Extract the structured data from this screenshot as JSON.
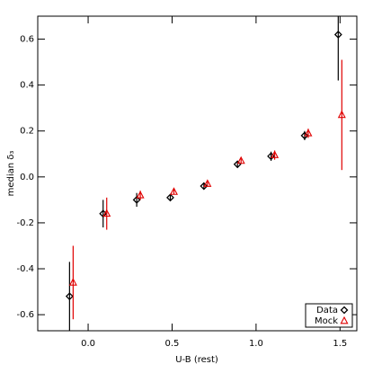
{
  "chart_data": {
    "type": "scatter",
    "xlabel": "U-B (rest)",
    "ylabel": "median δ₃",
    "x": [
      -0.1,
      0.1,
      0.3,
      0.5,
      0.7,
      0.9,
      1.1,
      1.3,
      1.5
    ],
    "series": [
      {
        "name": "Data",
        "color": "#000000",
        "marker": "diamond",
        "values": [
          -0.52,
          -0.16,
          -0.1,
          -0.09,
          -0.04,
          0.055,
          0.09,
          0.18,
          0.62
        ],
        "errors": [
          0.15,
          0.06,
          0.03,
          0.01,
          0.01,
          0.015,
          0.02,
          0.02,
          0.2
        ]
      },
      {
        "name": "Mock",
        "color": "#e00000",
        "marker": "triangle",
        "values": [
          -0.46,
          -0.16,
          -0.08,
          -0.065,
          -0.03,
          0.07,
          0.095,
          0.19,
          0.27
        ],
        "errors": [
          0.16,
          0.07,
          0.02,
          0.01,
          0.01,
          0.01,
          0.02,
          0.02,
          0.24
        ]
      }
    ],
    "xlim": [
      -0.3,
      1.6
    ],
    "ylim": [
      -0.67,
      0.7
    ],
    "xticks": [
      {
        "value": 0,
        "label": "0.0"
      },
      0.5,
      {
        "value": 1,
        "label": "1.0"
      },
      1.5
    ],
    "yticks": [
      -0.6,
      -0.4,
      -0.2,
      {
        "value": 0,
        "label": "0.0"
      },
      0.2,
      0.4,
      0.6
    ],
    "legend": "lower right"
  }
}
